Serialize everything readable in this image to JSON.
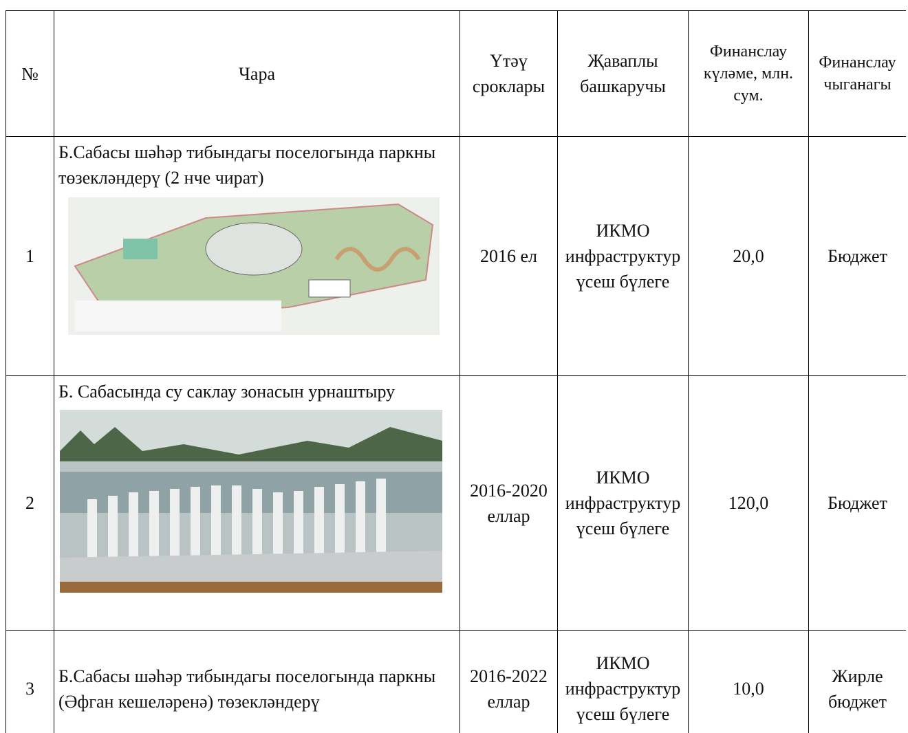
{
  "table": {
    "header": [
      "№",
      "Чара",
      "Үтәү сроклары",
      "Җаваплы башкаручы",
      "Финанслау күләме, млн. сум.",
      "Финанслау чыганагы"
    ],
    "rows": [
      [
        "1",
        "Б.Сабасы шәһәр тибындагы поселогында паркны төзекләндерү (2 нче чират)",
        "2016 ел",
        "ИКМО инфраструктур үсеш бүлеге",
        "20,0",
        "Бюджет"
      ],
      [
        "2",
        "Б. Сабасында су саклау зонасын урнаштыру",
        "2016-2020 еллар",
        "ИКМО инфраструктур үсеш бүлеге",
        "120,0",
        "Бюджет"
      ],
      [
        "3",
        "Б.Сабасы шәһәр тибындагы поселогында паркны (Әфган кешеләренә) төзекләндерү",
        "2016-2022 еллар",
        "ИКМО инфраструктур үсеш бүлеге",
        "10,0",
        "Жирле бюджет"
      ]
    ]
  }
}
